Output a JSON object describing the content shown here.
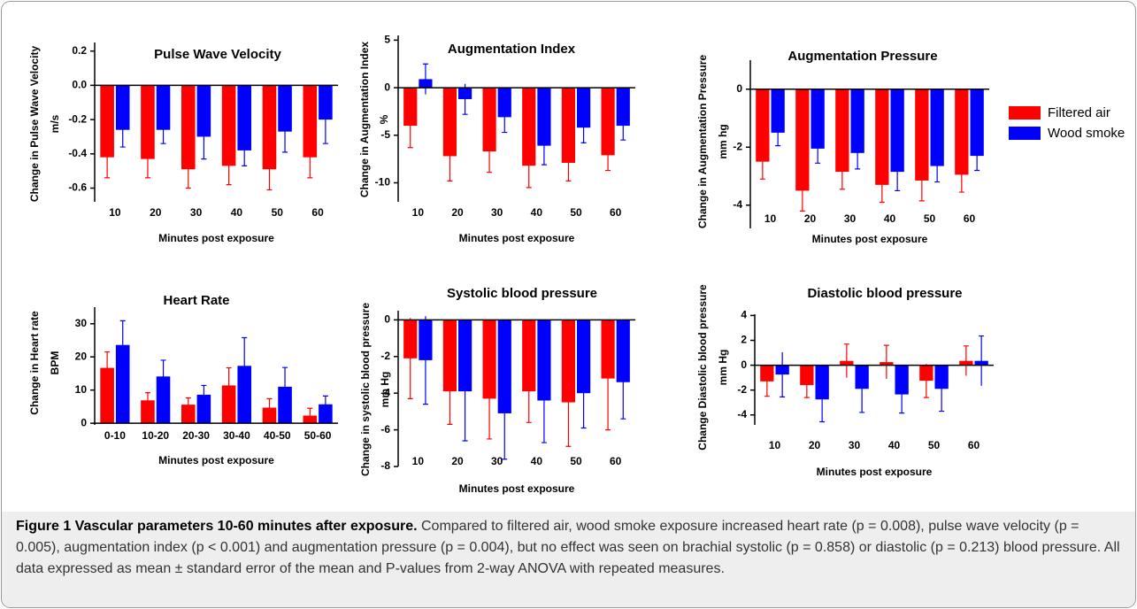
{
  "chart_data": [
    {
      "type": "bar",
      "title": "Pulse Wave Velocity",
      "ylabel": [
        "Change in Pulse Wave Velocity",
        "m/s"
      ],
      "xlabel": "Minutes post exposure",
      "categories": [
        "10",
        "20",
        "30",
        "40",
        "50",
        "60"
      ],
      "series": [
        {
          "name": "Filtered air",
          "color": "#ff0000",
          "values": [
            -0.42,
            -0.43,
            -0.49,
            -0.47,
            -0.49,
            -0.42
          ],
          "errors": [
            0.12,
            0.11,
            0.11,
            0.11,
            0.12,
            0.12
          ]
        },
        {
          "name": "Wood smoke",
          "color": "#0000ff",
          "values": [
            -0.26,
            -0.26,
            -0.3,
            -0.38,
            -0.27,
            -0.2
          ],
          "errors": [
            0.1,
            0.08,
            0.13,
            0.09,
            0.12,
            0.14
          ]
        }
      ],
      "ylim": [
        -0.68,
        0.25
      ],
      "yticks": [
        0.2,
        {
          "value": 0,
          "label": "0.0"
        },
        -0.2,
        -0.4,
        -0.6
      ]
    },
    {
      "type": "bar",
      "title": "Augmentation Index",
      "ylabel": [
        "Change in Augmentation Index",
        "%"
      ],
      "xlabel": "Minutes post exposure",
      "categories": [
        "10",
        "20",
        "30",
        "40",
        "50",
        "60"
      ],
      "series": [
        {
          "name": "Filtered air",
          "color": "#ff0000",
          "values": [
            -4.0,
            -7.2,
            -6.7,
            -8.2,
            -7.9,
            -7.1
          ],
          "errors": [
            2.3,
            2.6,
            2.2,
            2.3,
            1.9,
            1.6
          ]
        },
        {
          "name": "Wood smoke",
          "color": "#0000ff",
          "values": [
            0.9,
            -1.2,
            -3.1,
            -6.1,
            -4.2,
            -4.0
          ],
          "errors": [
            1.6,
            1.6,
            1.6,
            2.0,
            1.6,
            1.5
          ]
        }
      ],
      "ylim": [
        -12,
        5.5
      ],
      "yticks": [
        5,
        0,
        -5,
        -10
      ]
    },
    {
      "type": "bar",
      "title": "Augmentation Pressure",
      "ylabel": [
        "Change in Augmentation Pressure",
        "mm hg"
      ],
      "xlabel": "Minutes post exposure",
      "categories": [
        "10",
        "20",
        "30",
        "40",
        "50",
        "60"
      ],
      "series": [
        {
          "name": "Filtered air",
          "color": "#ff0000",
          "values": [
            -2.5,
            -3.5,
            -2.85,
            -3.3,
            -3.15,
            -2.95
          ],
          "errors": [
            0.6,
            0.7,
            0.6,
            0.6,
            0.7,
            0.6
          ]
        },
        {
          "name": "Wood smoke",
          "color": "#0000ff",
          "values": [
            -1.5,
            -2.05,
            -2.2,
            -2.85,
            -2.65,
            -2.3
          ],
          "errors": [
            0.45,
            0.5,
            0.55,
            0.65,
            0.55,
            0.5
          ]
        }
      ],
      "ylim": [
        -4.8,
        1.0
      ],
      "yticks": [
        0,
        -2,
        -4
      ]
    },
    {
      "type": "bar",
      "title": "Heart Rate",
      "ylabel": [
        "Change  in Heart rate",
        "BPM"
      ],
      "xlabel": "Minutes post exposure",
      "categories": [
        "0-10",
        "10-20",
        "20-30",
        "30-40",
        "40-50",
        "50-60"
      ],
      "series": [
        {
          "name": "Filtered air",
          "color": "#ff0000",
          "values": [
            16.7,
            6.9,
            5.6,
            11.4,
            4.7,
            2.3
          ],
          "errors": [
            4.8,
            2.3,
            2.0,
            5.3,
            2.7,
            2.2
          ]
        },
        {
          "name": "Wood smoke",
          "color": "#0000ff",
          "values": [
            23.6,
            14.1,
            8.6,
            17.3,
            11.0,
            5.7
          ],
          "errors": [
            7.3,
            4.9,
            2.8,
            8.5,
            5.8,
            2.5
          ]
        }
      ],
      "ylim": [
        -0.5,
        35
      ],
      "yticks": [
        0,
        10,
        20,
        30
      ]
    },
    {
      "type": "bar",
      "title": "Systolic blood pressure",
      "ylabel": [
        "Change in systolic blood pressure",
        "mm Hg"
      ],
      "xlabel": "Minutes post exposure",
      "categories": [
        "10",
        "20",
        "30",
        "40",
        "50",
        "60"
      ],
      "series": [
        {
          "name": "Filtered air",
          "color": "#ff0000",
          "values": [
            -2.1,
            -3.9,
            -4.3,
            -3.9,
            -4.5,
            -3.2
          ],
          "errors": [
            2.2,
            1.8,
            2.2,
            1.7,
            2.4,
            2.8
          ]
        },
        {
          "name": "Wood smoke",
          "color": "#0000ff",
          "values": [
            -2.2,
            -3.9,
            -5.1,
            -4.4,
            -4.0,
            -3.4
          ],
          "errors": [
            2.4,
            2.7,
            2.5,
            2.3,
            1.9,
            2.0
          ]
        }
      ],
      "ylim": [
        -8,
        0.5
      ],
      "yticks": [
        0,
        -2,
        -4,
        -6,
        -8
      ]
    },
    {
      "type": "bar",
      "title": "Diastolic blood pressure",
      "ylabel": [
        "Change Diastolic blood pressure",
        "mm Hg"
      ],
      "xlabel": "Minutes post exposure",
      "categories": [
        "10",
        "20",
        "30",
        "40",
        "50",
        "60"
      ],
      "series": [
        {
          "name": "Filtered air",
          "color": "#ff0000",
          "values": [
            -1.3,
            -1.6,
            0.35,
            0.25,
            -1.25,
            0.35
          ],
          "errors": [
            1.2,
            1.0,
            1.35,
            1.35,
            1.35,
            1.2
          ]
        },
        {
          "name": "Wood smoke",
          "color": "#0000ff",
          "values": [
            -0.75,
            -2.75,
            -1.9,
            -2.35,
            -1.9,
            0.35
          ],
          "errors": [
            1.8,
            1.8,
            1.9,
            1.5,
            1.8,
            2.0
          ]
        }
      ],
      "ylim": [
        -4.8,
        4.1
      ],
      "yticks": [
        4,
        2,
        0,
        -2,
        -4
      ]
    }
  ],
  "caption": {
    "title": "Figure 1 Vascular parameters 10-60 minutes after exposure.",
    "text": "Compared to filtered air, wood smoke exposure increased heart rate (p = 0.008), pulse wave velocity (p = 0.005), augmentation index (p < 0.001) and augmentation pressure (p = 0.004), but no effect was seen on brachial systolic (p = 0.858) or diastolic (p = 0.213) blood pressure. All data expressed as mean ± standard error of the mean and P-values from 2-way ANOVA with repeated measures."
  }
}
